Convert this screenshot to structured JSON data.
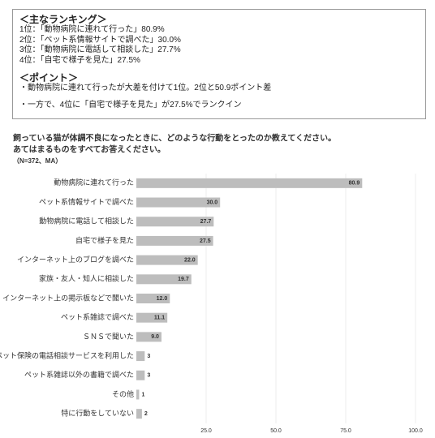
{
  "summary": {
    "heading": "＜主なランキング＞",
    "ranking": [
      "1位：「動物病院に連れて行った」80.9%",
      "2位：「ペット系情報サイトで調べた」30.0%",
      "3位：「動物病院に電話して相談した」27.7%",
      "4位：「自宅で様子を見た」27.5%"
    ],
    "point_heading": "＜ポイント＞",
    "points": [
      "・動物病院に連れて行ったが大差を付けて1位。2位と50.9ポイント差",
      "・一方で、4位に「自宅で様子を見た」が27.5%でランクイン"
    ]
  },
  "chart_data": {
    "type": "bar",
    "title": [
      "飼っている猫が体調不良になったときに、どのような行動をとったのか教えてください。",
      "あてはまるものをすべてお答えください。"
    ],
    "subtitle": "（N=372、MA）",
    "categories": [
      "動物病院に連れて行った",
      "ペット系情報サイトで調べた",
      "動物病院に電話して相談した",
      "自宅で様子を見た",
      "インターネット上のブログを調べた",
      "家族・友人・知人に相談した",
      "インターネット上の掲示板などで聞いた",
      "ペット系雑誌で調べた",
      "ＳＮＳで聞いた",
      "ペット保険の電話相談サービスを利用した",
      "ペット系雑誌以外の書籍で調べた",
      "その他",
      "特に行動をしていない"
    ],
    "values": [
      80.9,
      30.0,
      27.7,
      27.5,
      22.0,
      19.7,
      12.0,
      11.1,
      9.0,
      3,
      3,
      1,
      2
    ],
    "value_labels": [
      "80.9",
      "30.0",
      "27.7",
      "27.5",
      "22.0",
      "19.7",
      "12.0",
      "11.1",
      "9.0",
      "3",
      "3",
      "1",
      "2"
    ],
    "color": "#bdbdbd",
    "xlim": [
      0,
      100
    ],
    "xticks": [
      {
        "value": 25,
        "label": "25.0"
      },
      {
        "value": 50,
        "label": "50.0"
      },
      {
        "value": 75,
        "label": "75.0"
      },
      {
        "value": 100,
        "label": "100.0"
      }
    ],
    "grid": true
  }
}
